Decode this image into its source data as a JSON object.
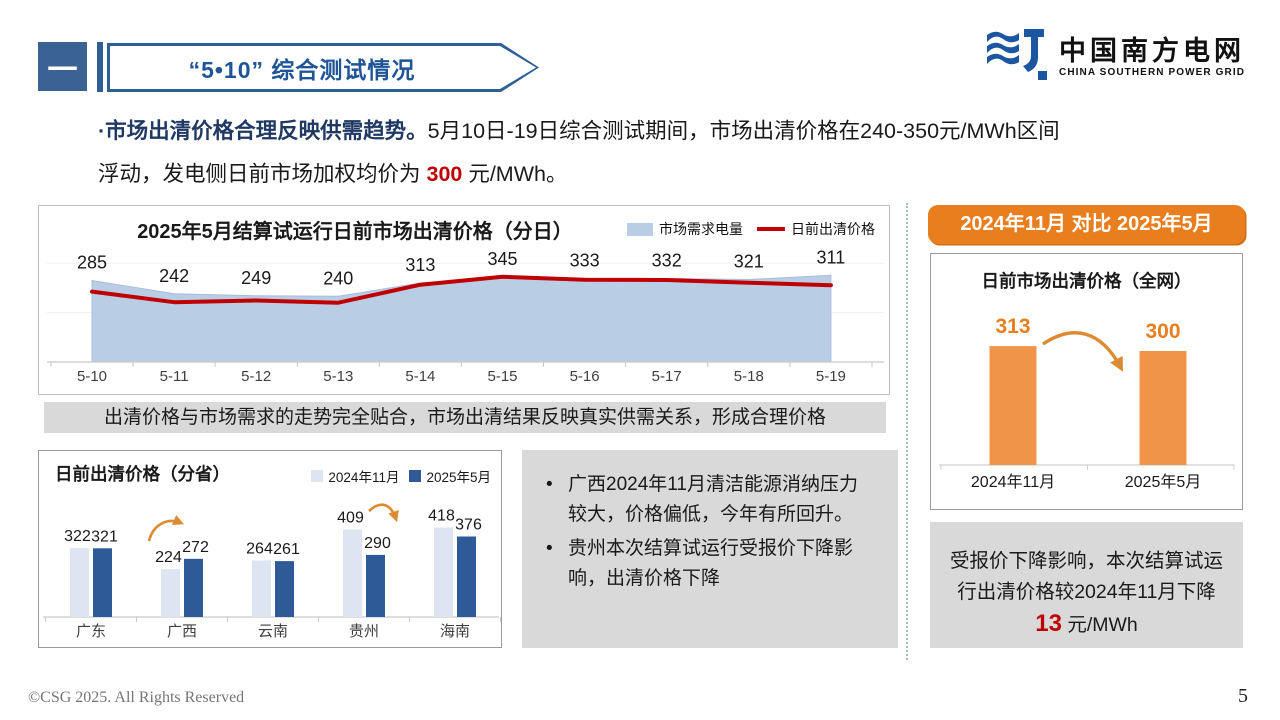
{
  "colors": {
    "accent_blue": "#2E5F95",
    "badge_blue": "#3A6394",
    "title_blue": "#1F5597",
    "navy_text": "#1F3864",
    "highlight_red": "#C00000",
    "area_fill": "#B9CDE5",
    "line_red": "#C00000",
    "bar_light_blue": "#DCE5F1",
    "bar_dark_blue": "#2E5B97",
    "orange_banner": "#E87E1E",
    "orange_bar": "#F0944A",
    "orange_label": "#E87E1E",
    "arrow_orange": "#DD8B33",
    "gray_box": "#D9D9D9",
    "logo_blue": "#1A57A0"
  },
  "header": {
    "section_index": "一",
    "title": "“5•10” 综合测试情况",
    "logo_cn": "中国南方电网",
    "logo_en": "CHINA SOUTHERN POWER GRID"
  },
  "intro": {
    "lead": "·市场出清价格合理反映供需趋势。",
    "line1_rest": "5月10日-19日综合测试期间，市场出清价格在240-350元/MWh区间",
    "line2_pre": "浮动，发电侧日前市场加权均价为 ",
    "highlight": "300",
    "line2_post": " 元/MWh。"
  },
  "strip_note": "出清价格与市场需求的走势完全贴合，市场出清结果反映真实供需关系，形成合理价格",
  "analysis": {
    "bullets": [
      "广西2024年11月清洁能源消纳压力较大，价格偏低，今年有所回升。",
      "贵州本次结算试运行受报价下降影响，出清价格下降"
    ]
  },
  "right_panel": {
    "banner": "2024年11月 对比 2025年5月",
    "note_pre": "受报价下降影响，本次结算试运行出清价格较2024年11月下降 ",
    "note_highlight": "13",
    "note_post": " 元/MWh"
  },
  "footer": {
    "copyright": "©CSG 2025. All Rights Reserved",
    "page_number": "5"
  },
  "chart_data": [
    {
      "id": "daily",
      "type": "area",
      "subtype": "area+line combo",
      "title": "2025年5月结算试运行日前市场出清价格（分日）",
      "categories": [
        "5-10",
        "5-11",
        "5-12",
        "5-13",
        "5-14",
        "5-15",
        "5-16",
        "5-17",
        "5-18",
        "5-19"
      ],
      "series": [
        {
          "name": "市场需求电量",
          "type": "area",
          "color": "#B9CDE5",
          "estimated": true,
          "values": [
            330,
            276,
            268,
            266,
            320,
            341,
            338,
            338,
            334,
            351
          ]
        },
        {
          "name": "日前出清价格",
          "type": "line",
          "color": "#C00000",
          "values": [
            285,
            242,
            249,
            240,
            313,
            345,
            333,
            332,
            321,
            311
          ]
        }
      ],
      "ylim": [
        0,
        400
      ],
      "grid_step": 200,
      "legend_position": "top-right"
    },
    {
      "id": "province",
      "type": "bar",
      "subtype": "grouped",
      "title": "日前出清价格（分省）",
      "categories": [
        "广东",
        "广西",
        "云南",
        "贵州",
        "海南"
      ],
      "series": [
        {
          "name": "2024年11月",
          "color": "#DCE5F1",
          "values": [
            322,
            224,
            264,
            409,
            418
          ]
        },
        {
          "name": "2025年5月",
          "color": "#2E5B97",
          "values": [
            321,
            272,
            261,
            290,
            376
          ]
        }
      ],
      "annotations": [
        {
          "category": "广西",
          "trend": "up"
        },
        {
          "category": "贵州",
          "trend": "down"
        }
      ],
      "ylim": [
        0,
        450
      ],
      "legend_position": "top-right"
    },
    {
      "id": "network",
      "type": "bar",
      "title": "日前市场出清价格（全网）",
      "categories": [
        "2024年11月",
        "2025年5月"
      ],
      "values": [
        313,
        300
      ],
      "bar_color": "#F0944A",
      "label_color": "#E87E1E",
      "annotation": "decrease-arrow",
      "ylim": [
        0,
        330
      ]
    }
  ]
}
